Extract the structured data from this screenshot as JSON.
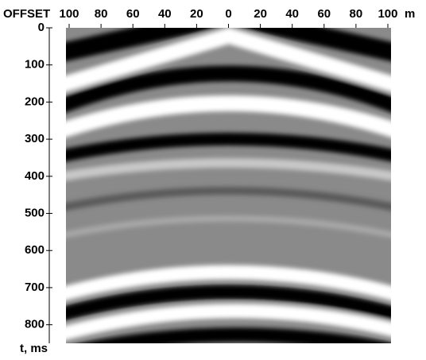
{
  "chart_data": {
    "type": "seismic-gather",
    "x_label": "OFFSET",
    "x_unit": "m",
    "y_label": "t, ms",
    "xlim": [
      -102,
      102
    ],
    "xticks": [
      {
        "value": -100,
        "label": "100"
      },
      {
        "value": -80,
        "label": "80"
      },
      {
        "value": -60,
        "label": "60"
      },
      {
        "value": -40,
        "label": "40"
      },
      {
        "value": -20,
        "label": "20"
      },
      0,
      20,
      40,
      60,
      80,
      100
    ],
    "ylim": [
      0,
      850
    ],
    "yticks": [
      0,
      100,
      200,
      300,
      400,
      500,
      600,
      700,
      800
    ],
    "y_reversed": true
  }
}
